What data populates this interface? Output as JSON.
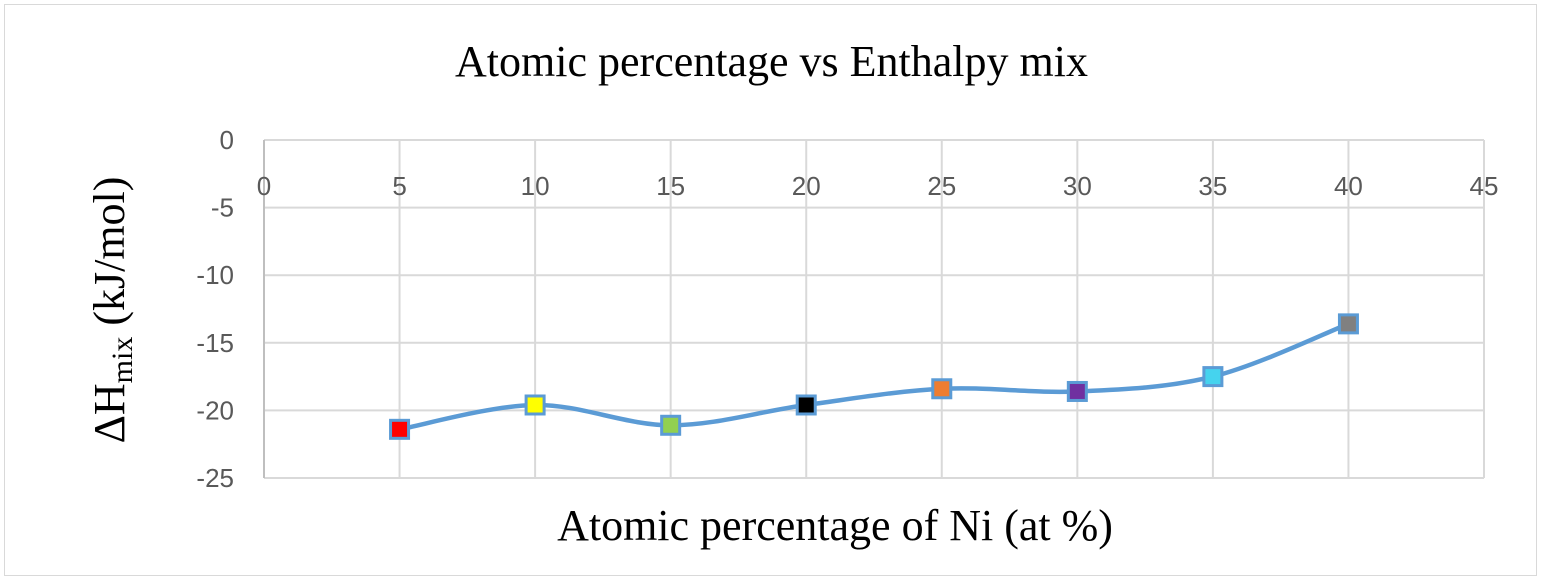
{
  "chart_data": {
    "type": "line",
    "title": "Atomic percentage vs Enthalpy mix",
    "xlabel": "Atomic percentage of Ni (at %)",
    "ylabel": "ΔHmix (kJ/mol)",
    "ylabel_main": "ΔH",
    "ylabel_sub": "mix",
    "ylabel_unit": "(kJ/mol)",
    "xlim": [
      0,
      45
    ],
    "ylim": [
      -25,
      0
    ],
    "x_ticks": [
      0,
      5,
      10,
      15,
      20,
      25,
      30,
      35,
      40,
      45
    ],
    "y_ticks": [
      0,
      -5,
      -10,
      -15,
      -20,
      -25
    ],
    "grid": true,
    "smooth": true,
    "line_color": "#5b9bd5",
    "x": [
      5,
      10,
      15,
      20,
      25,
      30,
      35,
      40
    ],
    "series": [
      {
        "name": "ΔHmix",
        "values": [
          -21.4,
          -19.6,
          -21.1,
          -19.6,
          -18.4,
          -18.6,
          -17.5,
          -13.6
        ]
      }
    ],
    "marker_colors": [
      "#ff0000",
      "#ffff00",
      "#92d050",
      "#000000",
      "#ed7d31",
      "#7030a0",
      "#45d3ee",
      "#808080"
    ]
  }
}
